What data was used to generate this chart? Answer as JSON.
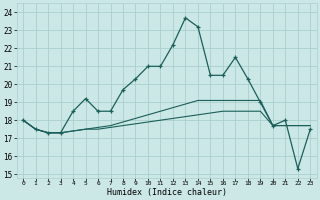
{
  "xlabel": "Humidex (Indice chaleur)",
  "xlim": [
    -0.5,
    23.5
  ],
  "ylim": [
    14.8,
    24.5
  ],
  "yticks": [
    15,
    16,
    17,
    18,
    19,
    20,
    21,
    22,
    23,
    24
  ],
  "xticks": [
    0,
    1,
    2,
    3,
    4,
    5,
    6,
    7,
    8,
    9,
    10,
    11,
    12,
    13,
    14,
    15,
    16,
    17,
    18,
    19,
    20,
    21,
    22,
    23
  ],
  "bg_color": "#cce8e6",
  "grid_color": "#aad0ce",
  "line_color": "#1a5f5a",
  "main_line": [
    18.0,
    17.5,
    17.3,
    17.3,
    18.5,
    19.2,
    18.5,
    18.5,
    19.7,
    20.3,
    21.0,
    21.0,
    22.2,
    23.7,
    23.2,
    20.5,
    20.5,
    21.5,
    20.3,
    19.0,
    17.7,
    18.0,
    15.3,
    17.5
  ],
  "ref_line1": [
    18.0,
    17.5,
    17.3,
    17.3,
    17.4,
    17.5,
    17.5,
    17.6,
    17.7,
    17.8,
    17.9,
    18.0,
    18.1,
    18.2,
    18.3,
    18.4,
    18.5,
    18.5,
    18.5,
    18.5,
    17.7,
    17.7,
    17.7,
    17.7
  ],
  "ref_line2": [
    18.0,
    17.5,
    17.3,
    17.3,
    17.4,
    17.5,
    17.6,
    17.7,
    17.9,
    18.1,
    18.3,
    18.5,
    18.7,
    18.9,
    19.1,
    19.1,
    19.1,
    19.1,
    19.1,
    19.1,
    17.7,
    17.7,
    17.7,
    17.7
  ]
}
